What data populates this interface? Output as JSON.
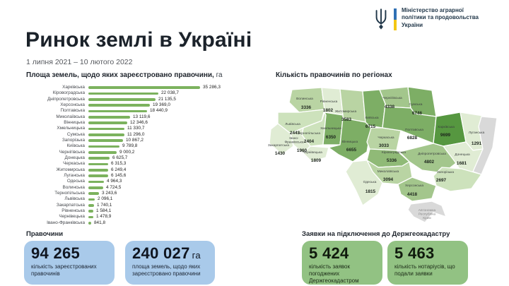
{
  "brand": {
    "ministry_name": "Міністерство аграрної політики та продовольства України"
  },
  "header": {
    "title": "Ринок землі в Україні",
    "period": "1 липня 2021 – 10 лютого 2022"
  },
  "colors": {
    "bar_green": "#7cb25e",
    "card_blue": "#a9caea",
    "card_green": "#92c283",
    "flag_blue": "#3070b5",
    "flag_yellow": "#f3c713",
    "ink": "#22384a",
    "map_scale_dark_to_light": [
      "#569740",
      "#7dae65",
      "#90ba77",
      "#a3c68c",
      "#b9d4a3",
      "#cde2bc",
      "#e0ecd4"
    ],
    "map_no_data": "#d9d9d9"
  },
  "chart_data": [
    {
      "type": "bar",
      "title": "Площа земель, щодо яких зареєстровано правочини,",
      "unit": "га",
      "orientation": "horizontal",
      "xlim": [
        0,
        35286.3
      ],
      "categories": [
        "Харківська",
        "Кіровоградська",
        "Дніпропетровська",
        "Херсонська",
        "Полтавська",
        "Миколаївська",
        "Вінницька",
        "Хмельницька",
        "Сумська",
        "Запорізька",
        "Київська",
        "Чернігівська",
        "Донецька",
        "Черкаська",
        "Житомирська",
        "Луганська",
        "Одеська",
        "Волинська",
        "Тернопільська",
        "Львівська",
        "Закарпатська",
        "Рівненська",
        "Чернівецька",
        "Івано-Франківська"
      ],
      "values": [
        35286.3,
        22038.7,
        21135.5,
        19369.0,
        18440.9,
        13119.6,
        12346.6,
        11330.7,
        11296.0,
        10867.2,
        9789.8,
        9000.2,
        6625.7,
        6315.3,
        6249.4,
        6145.6,
        4964.3,
        4724.5,
        3243.6,
        2096.1,
        1740.1,
        1584.1,
        1478.9,
        841.8
      ],
      "value_labels": [
        "35 286,3",
        "22 038,7",
        "21 135,5",
        "19 369,0",
        "18 440,9",
        "13 119,6",
        "12 346,6",
        "11 330,7",
        "11 296,0",
        "10 867,2",
        "9 789,8",
        "9 000,2",
        "6 625,7",
        "6 315,3",
        "6 249,4",
        "6 145,6",
        "4 964,3",
        "4 724,5",
        "3 243,6",
        "2 096,1",
        "1 740,1",
        "1 584,1",
        "1 478,9",
        "841,8"
      ]
    },
    {
      "type": "heatmap",
      "subtype": "choropleth-map-of-ukraine",
      "title": "Кількість правочинів по регіонах",
      "regions": [
        {
          "name": "Волинська",
          "value": 3336
        },
        {
          "name": "Рівненська",
          "value": 1802
        },
        {
          "name": "Житомирська",
          "value": 3583
        },
        {
          "name": "Київська",
          "value": 6715
        },
        {
          "name": "Чернігівська",
          "value": 4338
        },
        {
          "name": "Сумська",
          "value": 6746
        },
        {
          "name": "Львівська",
          "value": 2443
        },
        {
          "name": "Тернопільська",
          "value": 2404
        },
        {
          "name": "Хмельницька",
          "value": 6350
        },
        {
          "name": "Івано-Франківська",
          "value": 1960
        },
        {
          "name": "Закарпатська",
          "value": 1430
        },
        {
          "name": "Чернівецька",
          "value": 1809
        },
        {
          "name": "Вінницька",
          "value": 6655
        },
        {
          "name": "Черкаська",
          "value": 3033
        },
        {
          "name": "Полтавська",
          "value": 6828
        },
        {
          "name": "Харківська",
          "value": 9699
        },
        {
          "name": "Луганська",
          "value": 1291
        },
        {
          "name": "Донецька",
          "value": 1681
        },
        {
          "name": "Дніпропетровська",
          "value": 4802
        },
        {
          "name": "Запорізька",
          "value": 2697
        },
        {
          "name": "Кіровоградська",
          "value": 5336
        },
        {
          "name": "Миколаївська",
          "value": 3094
        },
        {
          "name": "Одеська",
          "value": 1815
        },
        {
          "name": "Херсонська",
          "value": 4418
        },
        {
          "name": "Автономна Республіка Крим",
          "value": null
        }
      ]
    }
  ],
  "stats": {
    "deals": {
      "section_label": "Правочини",
      "cards": [
        {
          "number": "94 265",
          "unit": "",
          "label": "кількість зареєстрованих правочинів"
        },
        {
          "number": "240 027",
          "unit": "га",
          "label": "площа земель, щодо яких зареєстровано правочини"
        }
      ]
    },
    "applications": {
      "section_label": "Заявки на підключення до Держгеокадастру",
      "cards": [
        {
          "number": "5 424",
          "unit": "",
          "label": "кількість заявок погоджених Держгеокадастром"
        },
        {
          "number": "5 463",
          "unit": "",
          "label": "кількість нотаріусів, що подали заявки"
        }
      ]
    }
  }
}
